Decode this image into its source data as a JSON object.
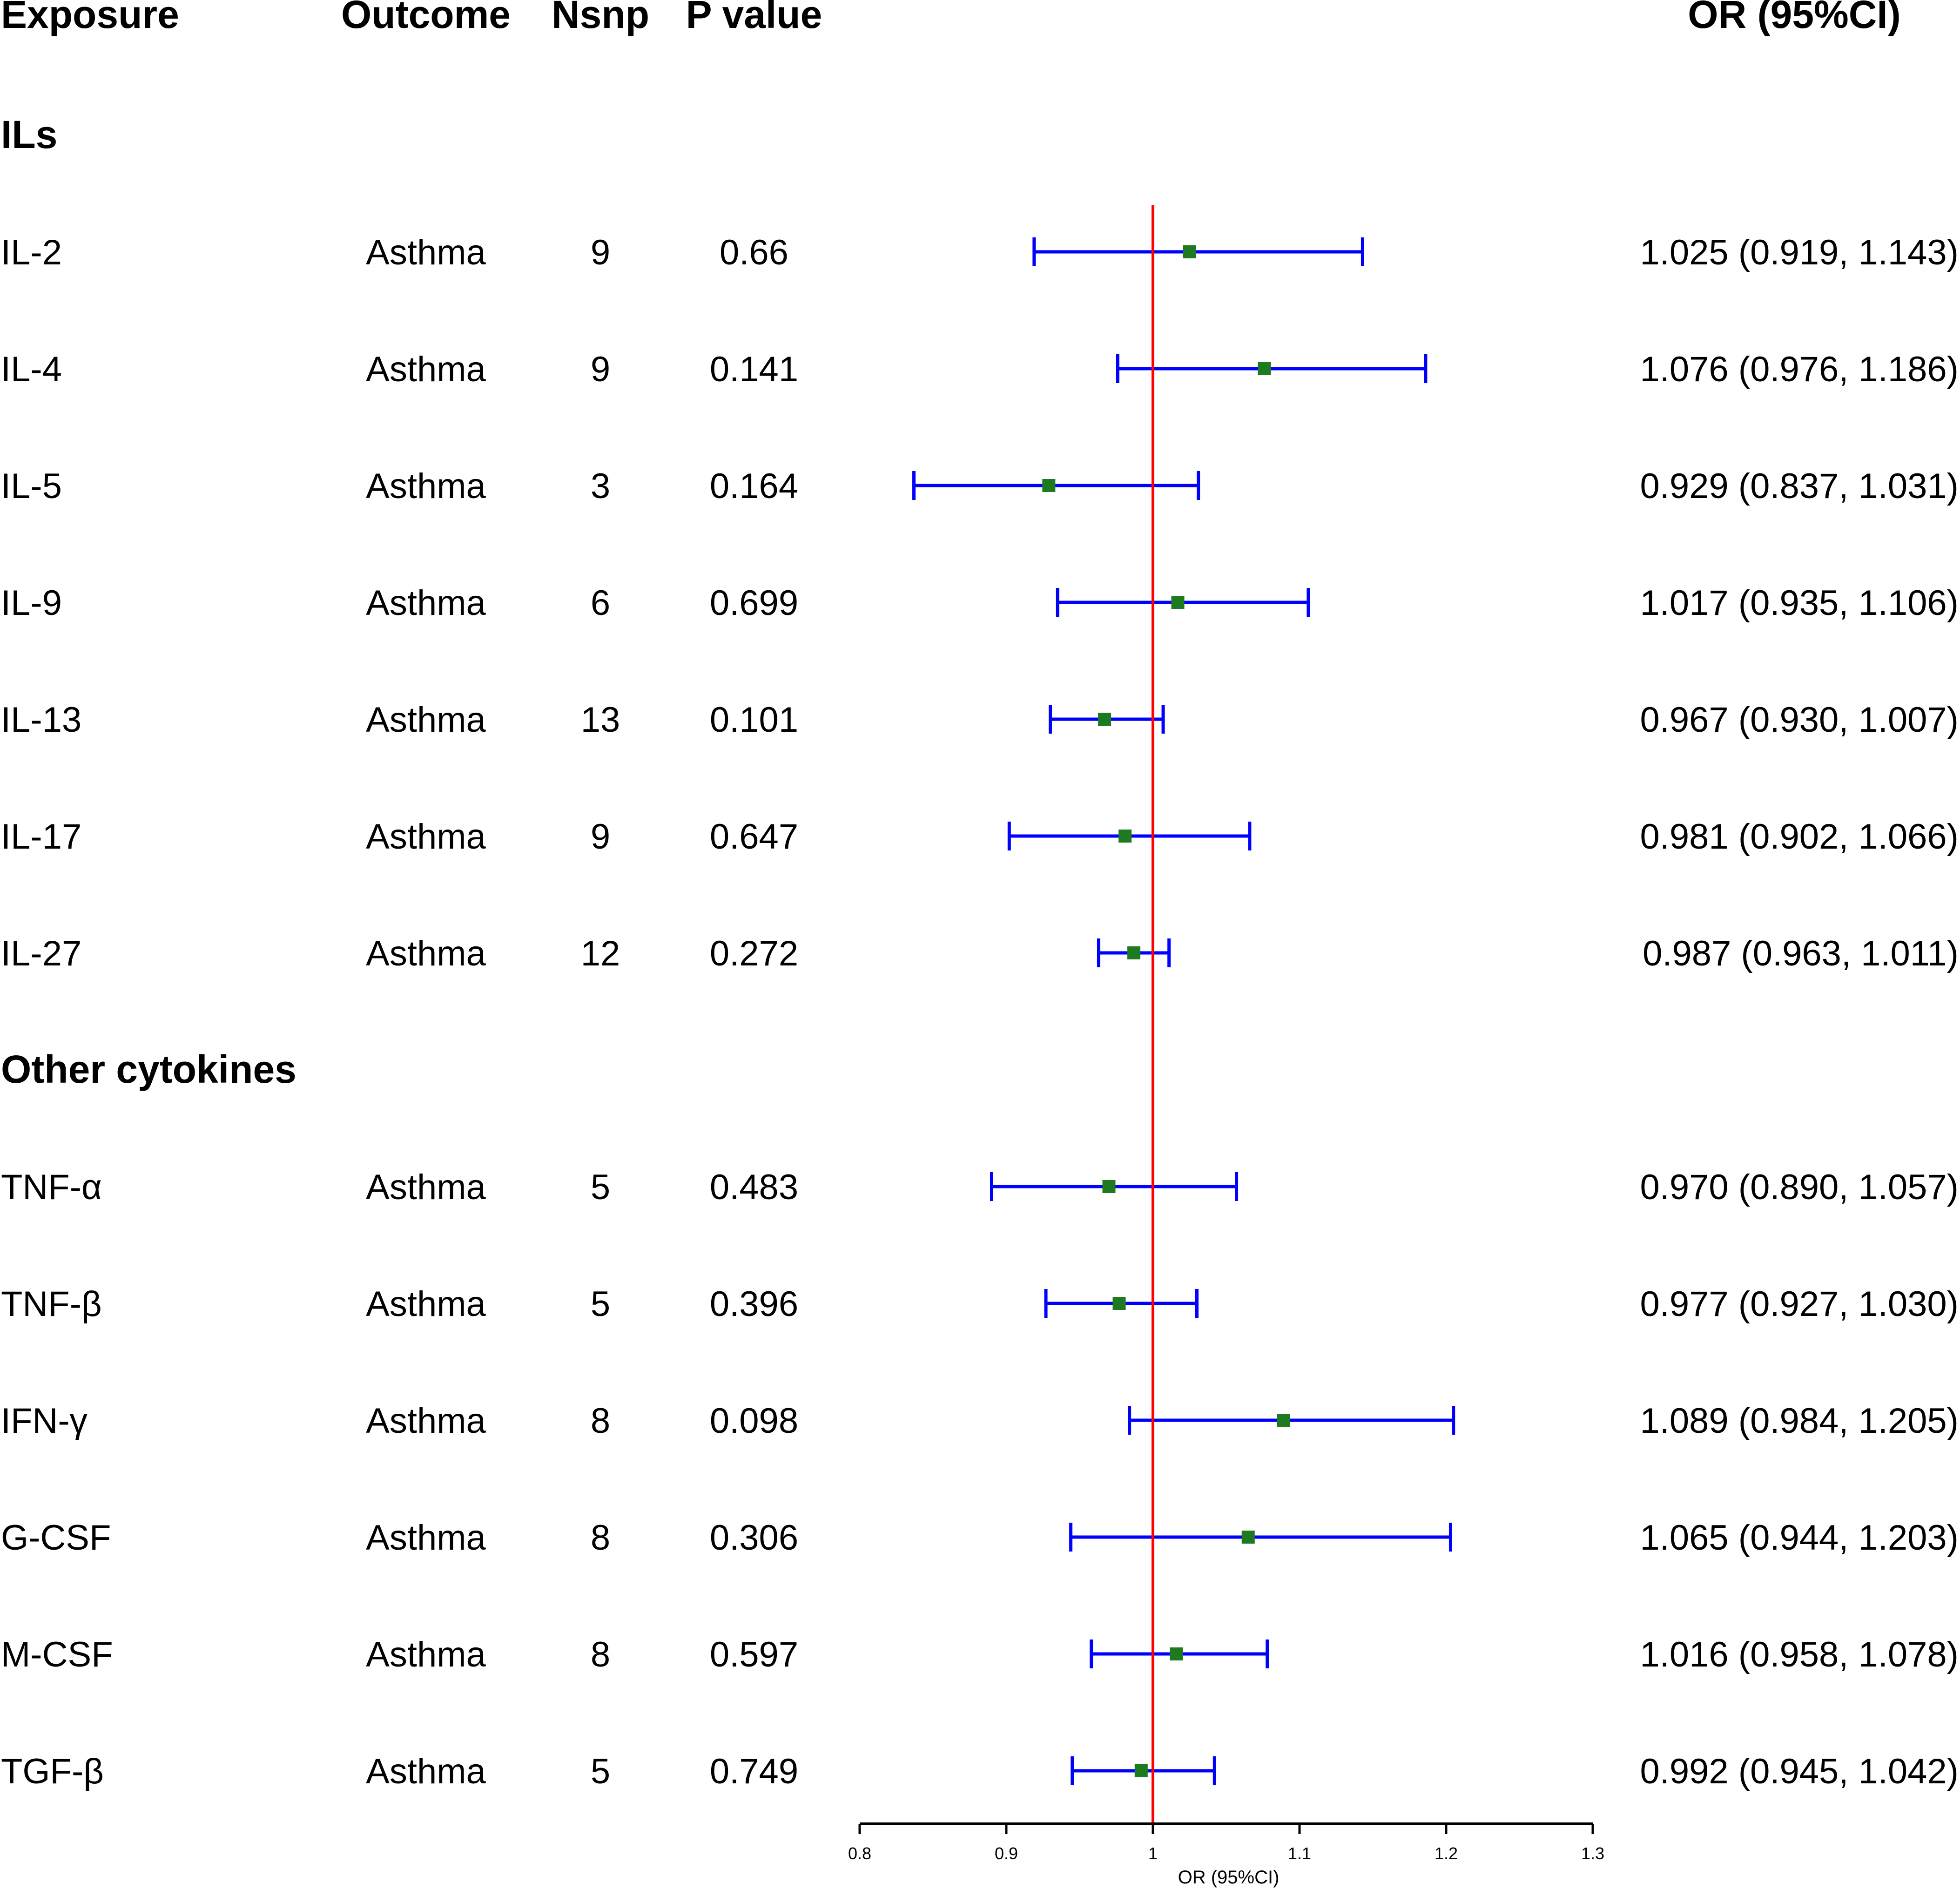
{
  "chart_data": {
    "type": "forest",
    "headers": {
      "exposure": "Exposure",
      "outcome": "Outcome",
      "nsnp": "Nsnp",
      "pvalue": "P value",
      "or": "OR (95%CI)"
    },
    "xlabel": "OR (95%CI)",
    "xlim": [
      0.8,
      1.3
    ],
    "xticks": [
      0.8,
      0.9,
      1,
      1.1,
      1.2,
      1.3
    ],
    "xtick_labels": [
      "0.8",
      "0.9",
      "1",
      "1.1",
      "1.2",
      "1.3"
    ],
    "reference_line": 1,
    "colors": {
      "ci": "#0000ff",
      "point": "#1e7a1e",
      "reference": "#ff0000",
      "axis": "#000000"
    },
    "groups": [
      {
        "title": "ILs",
        "rows": [
          {
            "exposure": "IL-2",
            "outcome": "Asthma",
            "nsnp": "9",
            "p": "0.66",
            "or": 1.025,
            "lower": 0.919,
            "upper": 1.143,
            "label": "1.025 (0.919, 1.143)"
          },
          {
            "exposure": "IL-4",
            "outcome": "Asthma",
            "nsnp": "9",
            "p": "0.141",
            "or": 1.076,
            "lower": 0.976,
            "upper": 1.186,
            "label": "1.076 (0.976, 1.186)"
          },
          {
            "exposure": "IL-5",
            "outcome": "Asthma",
            "nsnp": "3",
            "p": "0.164",
            "or": 0.929,
            "lower": 0.837,
            "upper": 1.031,
            "label": "0.929 (0.837, 1.031)"
          },
          {
            "exposure": "IL-9",
            "outcome": "Asthma",
            "nsnp": "6",
            "p": "0.699",
            "or": 1.017,
            "lower": 0.935,
            "upper": 1.106,
            "label": "1.017 (0.935, 1.106)"
          },
          {
            "exposure": "IL-13",
            "outcome": "Asthma",
            "nsnp": "13",
            "p": "0.101",
            "or": 0.967,
            "lower": 0.93,
            "upper": 1.007,
            "label": "0.967 (0.930, 1.007)"
          },
          {
            "exposure": "IL-17",
            "outcome": "Asthma",
            "nsnp": "9",
            "p": "0.647",
            "or": 0.981,
            "lower": 0.902,
            "upper": 1.066,
            "label": "0.981 (0.902, 1.066)"
          },
          {
            "exposure": "IL-27",
            "outcome": "Asthma",
            "nsnp": "12",
            "p": "0.272",
            "or": 0.987,
            "lower": 0.963,
            "upper": 1.011,
            "label": "0.987 (0.963, 1.011)"
          }
        ]
      },
      {
        "title": "Other cytokines",
        "rows": [
          {
            "exposure": "TNF-α",
            "outcome": "Asthma",
            "nsnp": "5",
            "p": "0.483",
            "or": 0.97,
            "lower": 0.89,
            "upper": 1.057,
            "label": "0.970 (0.890, 1.057)"
          },
          {
            "exposure": "TNF-β",
            "outcome": "Asthma",
            "nsnp": "5",
            "p": "0.396",
            "or": 0.977,
            "lower": 0.927,
            "upper": 1.03,
            "label": "0.977 (0.927, 1.030)"
          },
          {
            "exposure": "IFN-γ",
            "outcome": "Asthma",
            "nsnp": "8",
            "p": "0.098",
            "or": 1.089,
            "lower": 0.984,
            "upper": 1.205,
            "label": "1.089 (0.984, 1.205)"
          },
          {
            "exposure": "G-CSF",
            "outcome": "Asthma",
            "nsnp": "8",
            "p": "0.306",
            "or": 1.065,
            "lower": 0.944,
            "upper": 1.203,
            "label": "1.065 (0.944, 1.203)"
          },
          {
            "exposure": "M-CSF",
            "outcome": "Asthma",
            "nsnp": "8",
            "p": "0.597",
            "or": 1.016,
            "lower": 0.958,
            "upper": 1.078,
            "label": "1.016 (0.958, 1.078)"
          },
          {
            "exposure": "TGF-β",
            "outcome": "Asthma",
            "nsnp": "5",
            "p": "0.749",
            "or": 0.992,
            "lower": 0.945,
            "upper": 1.042,
            "label": "0.992 (0.945, 1.042)"
          }
        ]
      }
    ]
  }
}
